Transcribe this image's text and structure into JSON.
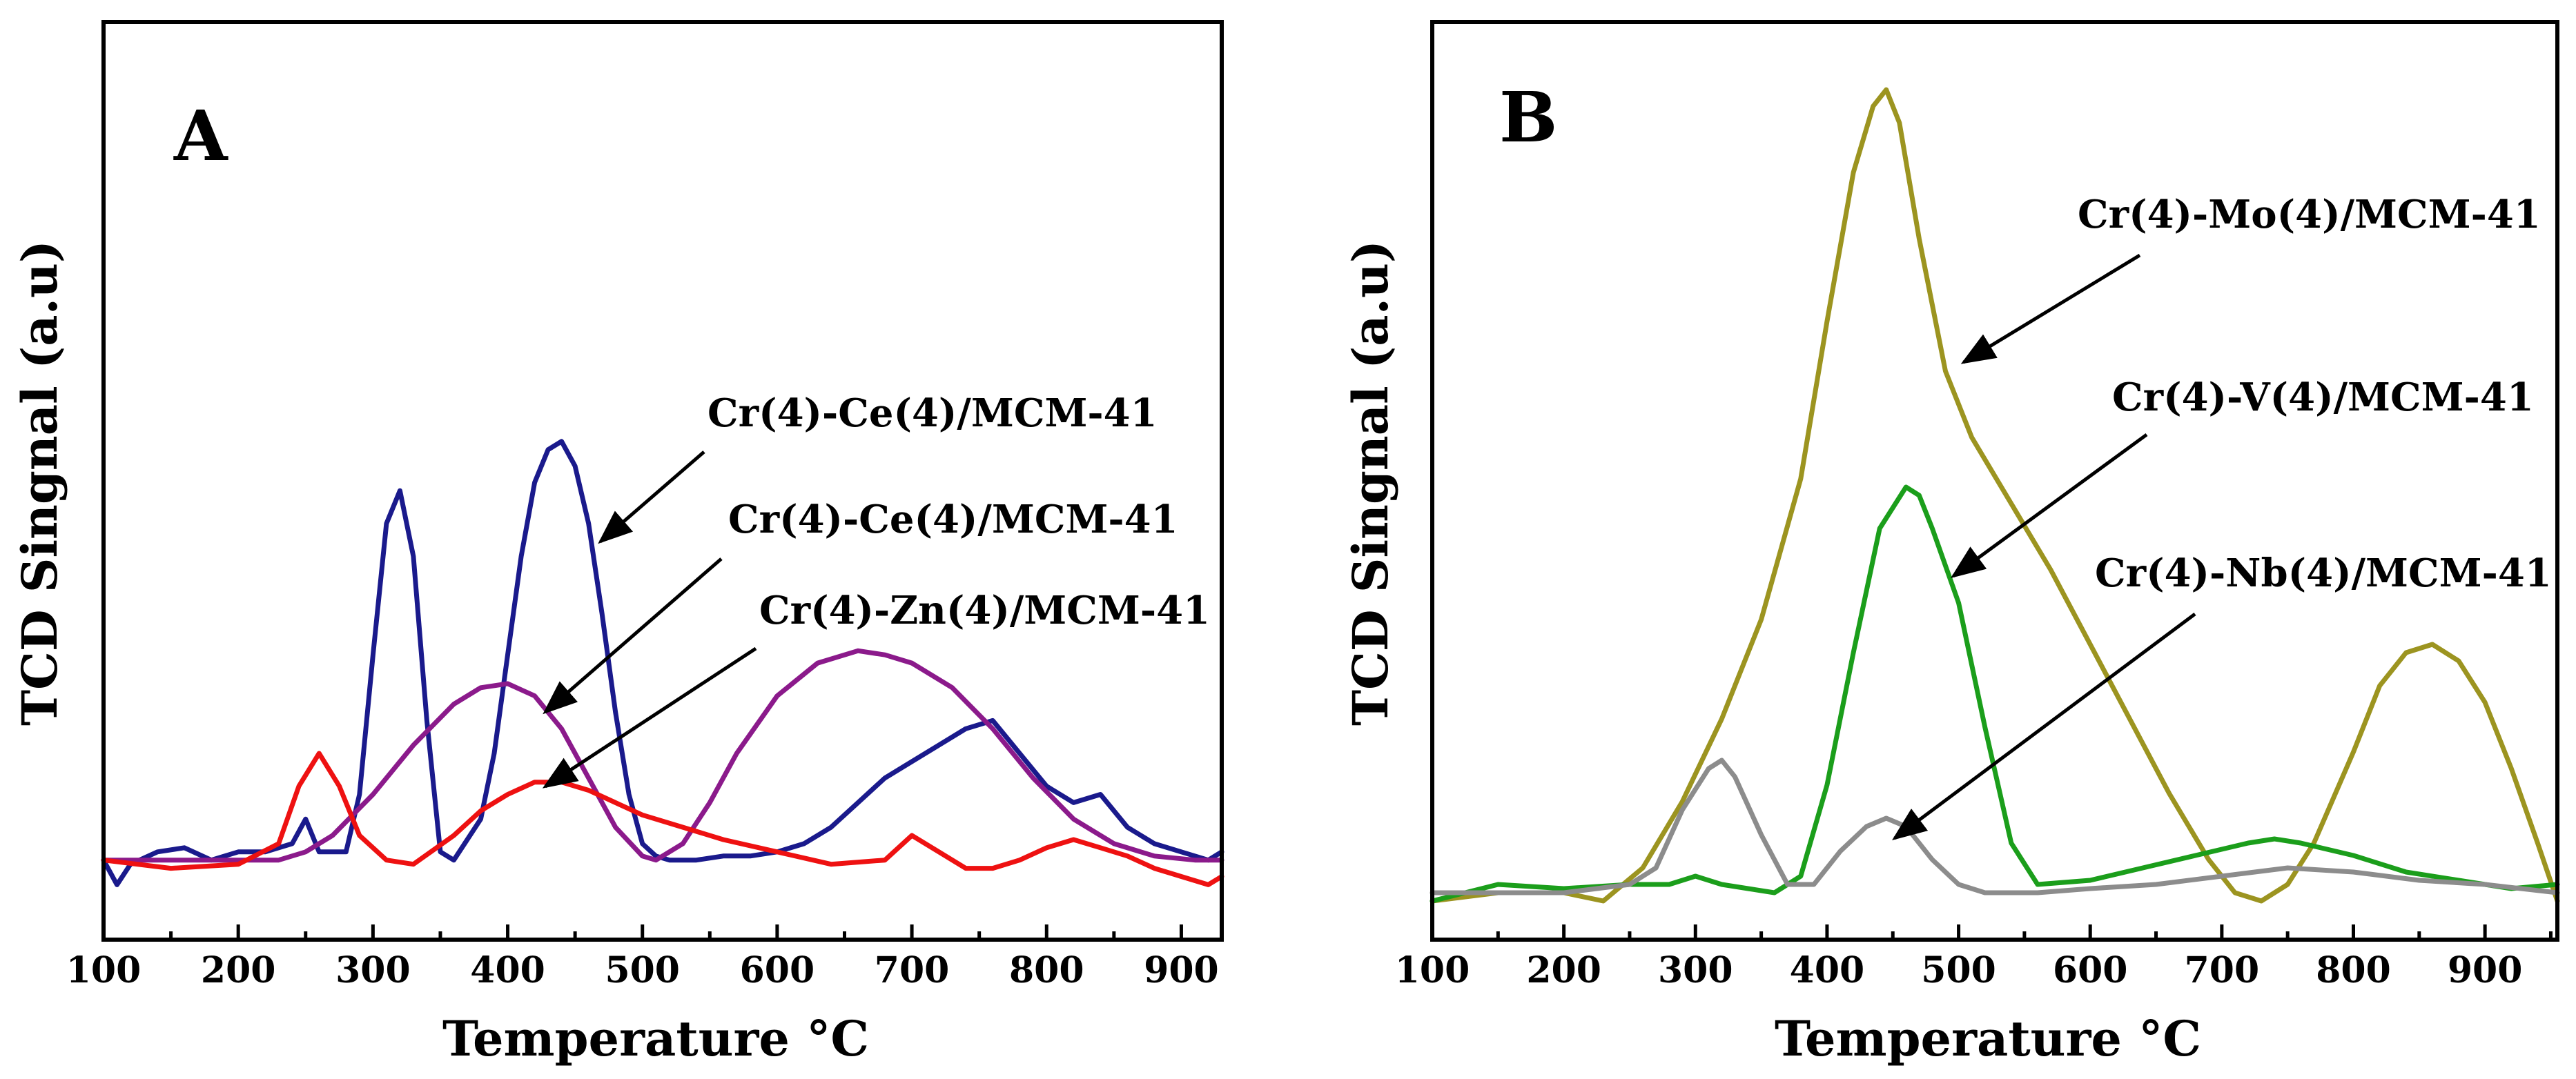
{
  "chart_data": [
    {
      "type": "line",
      "panel_label": "A",
      "xlabel": "Temperature",
      "xlabel_unit": "°C",
      "ylabel": "TCD Singnal (a.u)",
      "xlim": [
        100,
        930
      ],
      "ylim": [
        0,
        1.0
      ],
      "xticks": [
        "100",
        "200",
        "300",
        "400",
        "500",
        "600",
        "700",
        "800",
        "900"
      ],
      "series": [
        {
          "name": "Cr(4)-Ce(4)/MCM-41",
          "color": "#1a1a8c",
          "x": [
            100,
            110,
            120,
            140,
            160,
            180,
            200,
            220,
            240,
            250,
            260,
            280,
            290,
            300,
            310,
            320,
            330,
            340,
            350,
            360,
            380,
            390,
            400,
            410,
            420,
            430,
            440,
            450,
            460,
            470,
            480,
            490,
            500,
            510,
            520,
            540,
            560,
            580,
            600,
            620,
            640,
            660,
            680,
            700,
            720,
            740,
            760,
            780,
            800,
            820,
            840,
            860,
            880,
            900,
            920,
            930
          ],
          "y": [
            0.07,
            0.04,
            0.065,
            0.08,
            0.085,
            0.07,
            0.08,
            0.08,
            0.09,
            0.12,
            0.08,
            0.08,
            0.15,
            0.32,
            0.48,
            0.52,
            0.44,
            0.24,
            0.08,
            0.07,
            0.12,
            0.2,
            0.32,
            0.44,
            0.53,
            0.57,
            0.58,
            0.55,
            0.48,
            0.37,
            0.25,
            0.15,
            0.09,
            0.075,
            0.07,
            0.07,
            0.075,
            0.075,
            0.08,
            0.09,
            0.11,
            0.14,
            0.17,
            0.19,
            0.21,
            0.23,
            0.24,
            0.2,
            0.16,
            0.14,
            0.15,
            0.11,
            0.09,
            0.08,
            0.07,
            0.08
          ]
        },
        {
          "name": "Cr(4)-Ce(4)/MCM-41",
          "color": "#8b1a8b",
          "x": [
            100,
            150,
            200,
            230,
            250,
            270,
            300,
            330,
            360,
            380,
            400,
            420,
            440,
            460,
            480,
            500,
            510,
            530,
            550,
            570,
            600,
            630,
            660,
            680,
            700,
            730,
            760,
            790,
            820,
            850,
            880,
            910,
            930
          ],
          "y": [
            0.07,
            0.07,
            0.07,
            0.07,
            0.08,
            0.1,
            0.15,
            0.21,
            0.26,
            0.28,
            0.285,
            0.27,
            0.23,
            0.17,
            0.11,
            0.075,
            0.07,
            0.09,
            0.14,
            0.2,
            0.27,
            0.31,
            0.325,
            0.32,
            0.31,
            0.28,
            0.23,
            0.17,
            0.12,
            0.09,
            0.075,
            0.07,
            0.07
          ]
        },
        {
          "name": "Cr(4)-Zn(4)/MCM-41",
          "color": "#ee1111",
          "x": [
            100,
            150,
            200,
            230,
            245,
            260,
            275,
            290,
            310,
            330,
            360,
            380,
            400,
            420,
            440,
            460,
            480,
            500,
            530,
            560,
            600,
            640,
            680,
            700,
            720,
            740,
            760,
            780,
            800,
            820,
            840,
            860,
            880,
            900,
            920,
            930
          ],
          "y": [
            0.07,
            0.06,
            0.065,
            0.09,
            0.16,
            0.2,
            0.16,
            0.1,
            0.07,
            0.065,
            0.1,
            0.13,
            0.15,
            0.165,
            0.165,
            0.155,
            0.14,
            0.125,
            0.11,
            0.095,
            0.08,
            0.065,
            0.07,
            0.1,
            0.08,
            0.06,
            0.06,
            0.07,
            0.085,
            0.095,
            0.085,
            0.075,
            0.06,
            0.05,
            0.04,
            0.05
          ]
        }
      ],
      "annotations": [
        "Cr(4)-Ce(4)/MCM-41",
        "Cr(4)-Ce(4)/MCM-41",
        "Cr(4)-Zn(4)/MCM-41"
      ]
    },
    {
      "type": "line",
      "panel_label": "B",
      "xlabel": "Temperature",
      "xlabel_unit": "°C",
      "ylabel": "TCD Singnal (a.u)",
      "xlim": [
        100,
        955
      ],
      "ylim": [
        0,
        1.0
      ],
      "xticks": [
        "100",
        "200",
        "300",
        "400",
        "500",
        "600",
        "700",
        "800",
        "900"
      ],
      "series": [
        {
          "name": "Cr(4)-Mo(4)/MCM-41",
          "color": "#9c9420",
          "x": [
            100,
            150,
            200,
            230,
            260,
            290,
            320,
            350,
            380,
            400,
            420,
            435,
            445,
            455,
            470,
            490,
            510,
            540,
            570,
            600,
            630,
            660,
            690,
            710,
            730,
            750,
            770,
            800,
            820,
            840,
            860,
            880,
            900,
            920,
            940,
            955
          ],
          "y": [
            0.02,
            0.03,
            0.03,
            0.02,
            0.06,
            0.14,
            0.24,
            0.36,
            0.53,
            0.72,
            0.9,
            0.98,
            1.0,
            0.96,
            0.82,
            0.66,
            0.58,
            0.5,
            0.42,
            0.33,
            0.24,
            0.15,
            0.07,
            0.03,
            0.02,
            0.04,
            0.09,
            0.2,
            0.28,
            0.32,
            0.33,
            0.31,
            0.26,
            0.18,
            0.09,
            0.02
          ]
        },
        {
          "name": "Cr(4)-V(4)/MCM-41",
          "color": "#1b9e1b",
          "x": [
            100,
            150,
            200,
            250,
            280,
            300,
            320,
            340,
            360,
            380,
            400,
            420,
            440,
            460,
            470,
            480,
            500,
            520,
            540,
            560,
            600,
            640,
            680,
            720,
            740,
            760,
            800,
            840,
            880,
            920,
            955
          ],
          "y": [
            0.02,
            0.04,
            0.035,
            0.04,
            0.04,
            0.05,
            0.04,
            0.035,
            0.03,
            0.05,
            0.16,
            0.32,
            0.47,
            0.52,
            0.51,
            0.47,
            0.38,
            0.23,
            0.09,
            0.04,
            0.045,
            0.06,
            0.075,
            0.09,
            0.095,
            0.09,
            0.075,
            0.055,
            0.045,
            0.035,
            0.04
          ]
        },
        {
          "name": "Cr(4)-Nb(4)/MCM-41",
          "color": "#8c8c8c",
          "x": [
            100,
            150,
            200,
            250,
            270,
            290,
            310,
            320,
            330,
            350,
            370,
            390,
            410,
            430,
            445,
            460,
            480,
            500,
            520,
            560,
            600,
            650,
            700,
            750,
            800,
            850,
            900,
            955
          ],
          "y": [
            0.03,
            0.03,
            0.03,
            0.04,
            0.06,
            0.13,
            0.18,
            0.19,
            0.17,
            0.1,
            0.04,
            0.04,
            0.08,
            0.11,
            0.12,
            0.11,
            0.07,
            0.04,
            0.03,
            0.03,
            0.035,
            0.04,
            0.05,
            0.06,
            0.055,
            0.045,
            0.04,
            0.03
          ]
        }
      ],
      "annotations": [
        "Cr(4)-Mo(4)/MCM-41",
        "Cr(4)-V(4)/MCM-41",
        "Cr(4)-Nb(4)/MCM-41"
      ]
    }
  ]
}
